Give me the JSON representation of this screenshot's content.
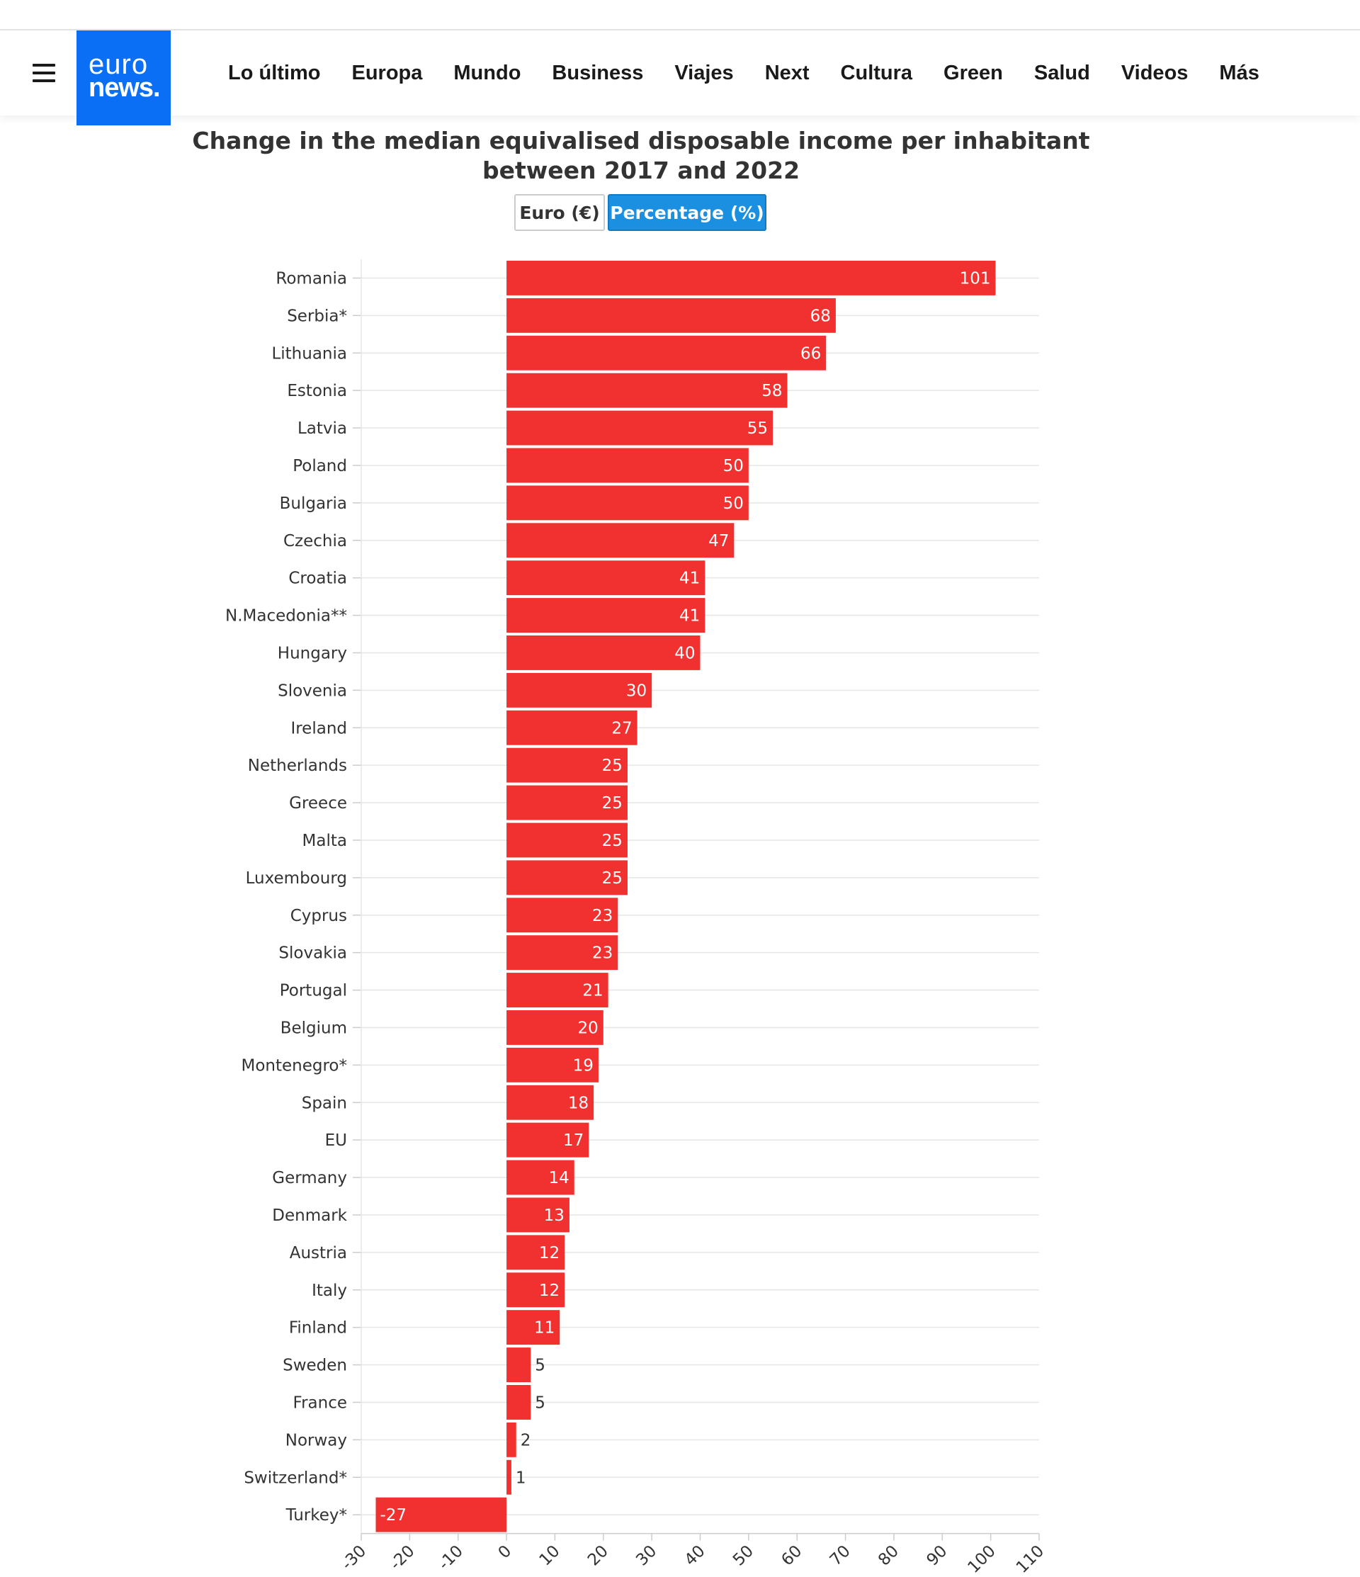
{
  "header": {
    "logo": {
      "line1": "euro",
      "line2": "news."
    },
    "nav": [
      "Lo último",
      "Europa",
      "Mundo",
      "Business",
      "Viajes",
      "Next",
      "Cultura",
      "Green",
      "Salud",
      "Videos",
      "Más"
    ]
  },
  "toggle": {
    "euro_label": "Euro (€)",
    "percentage_label": "Percentage (%)",
    "active": "percentage"
  },
  "colors": {
    "bar": "#f0312f",
    "brand": "#0b6ff5",
    "toggle_active": "#1b8fe0"
  },
  "chart_data": {
    "type": "bar",
    "orientation": "horizontal",
    "title": "Change in the median equivalised disposable income per inhabitant between 2017 and 2022",
    "title_lines": [
      "Change in the median equivalised disposable income per inhabitant",
      "between 2017 and 2022"
    ],
    "categories": [
      "Romania",
      "Serbia*",
      "Lithuania",
      "Estonia",
      "Latvia",
      "Poland",
      "Bulgaria",
      "Czechia",
      "Croatia",
      "N.Macedonia**",
      "Hungary",
      "Slovenia",
      "Ireland",
      "Netherlands",
      "Greece",
      "Malta",
      "Luxembourg",
      "Cyprus",
      "Slovakia",
      "Portugal",
      "Belgium",
      "Montenegro*",
      "Spain",
      "EU",
      "Germany",
      "Denmark",
      "Austria",
      "Italy",
      "Finland",
      "Sweden",
      "France",
      "Norway",
      "Switzerland*",
      "Turkey*"
    ],
    "values": [
      101,
      68,
      66,
      58,
      55,
      50,
      50,
      47,
      41,
      41,
      40,
      30,
      27,
      25,
      25,
      25,
      25,
      23,
      23,
      21,
      20,
      19,
      18,
      17,
      14,
      13,
      12,
      12,
      11,
      5,
      5,
      2,
      1,
      -27
    ],
    "xlim": [
      -30,
      110
    ],
    "xticks": [
      -30,
      -20,
      -10,
      0,
      10,
      20,
      30,
      40,
      50,
      60,
      70,
      80,
      90,
      100,
      110
    ],
    "grid": true,
    "data_labels": true
  }
}
